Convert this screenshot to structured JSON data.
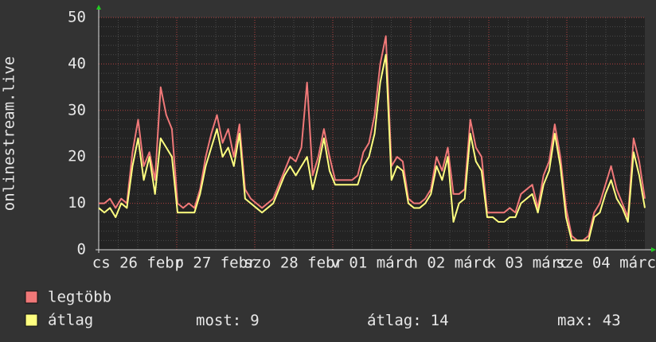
{
  "chart_data": {
    "type": "line",
    "y_label": "onlinestream.live",
    "ylim": [
      0,
      50
    ],
    "yticks": [
      0,
      10,
      20,
      30,
      40,
      50
    ],
    "grid": true,
    "x_labels": [
      "cs 26 febr",
      "p 27 febr",
      "szo 28 febr",
      "v 01 márc",
      "h 02 márc",
      "k 03 márc",
      "sze 04 márc"
    ],
    "series": [
      {
        "name": "legtöbb",
        "color": "#f07878",
        "values": [
          10,
          10,
          11,
          9,
          11,
          10,
          21,
          28,
          18,
          21,
          15,
          35,
          29,
          26,
          10,
          9,
          10,
          9,
          13,
          20,
          25,
          29,
          23,
          26,
          20,
          27,
          13,
          11,
          10,
          9,
          10,
          11,
          14,
          17,
          20,
          19,
          22,
          36,
          16,
          20,
          26,
          20,
          15,
          15,
          15,
          15,
          16,
          21,
          23,
          29,
          40,
          46,
          18,
          20,
          19,
          11,
          10,
          10,
          11,
          13,
          20,
          17,
          22,
          12,
          12,
          13,
          28,
          22,
          20,
          8,
          8,
          8,
          8,
          9,
          8,
          12,
          13,
          14,
          9,
          16,
          19,
          27,
          20,
          9,
          3,
          2,
          2,
          3,
          8,
          10,
          14,
          18,
          13,
          10,
          7,
          24,
          19,
          11
        ]
      },
      {
        "name": "átlag",
        "color": "#ffff80",
        "values": [
          9,
          8,
          9,
          7,
          10,
          9,
          18,
          24,
          15,
          20,
          12,
          24,
          22,
          20,
          8,
          8,
          8,
          8,
          12,
          18,
          22,
          26,
          20,
          22,
          18,
          25,
          11,
          10,
          9,
          8,
          9,
          10,
          13,
          16,
          18,
          16,
          18,
          20,
          13,
          18,
          24,
          17,
          14,
          14,
          14,
          14,
          14,
          18,
          20,
          25,
          36,
          42,
          15,
          18,
          17,
          10,
          9,
          9,
          10,
          12,
          18,
          15,
          20,
          6,
          10,
          11,
          25,
          19,
          17,
          7,
          7,
          6,
          6,
          7,
          7,
          10,
          11,
          12,
          8,
          14,
          17,
          25,
          18,
          7,
          2,
          2,
          2,
          2,
          7,
          8,
          12,
          15,
          11,
          9,
          6,
          21,
          16,
          9
        ]
      }
    ],
    "stats": [
      {
        "label": "most:",
        "value": 9
      },
      {
        "label": "átlag:",
        "value": 14
      },
      {
        "label": "max:",
        "value": 43
      }
    ]
  }
}
